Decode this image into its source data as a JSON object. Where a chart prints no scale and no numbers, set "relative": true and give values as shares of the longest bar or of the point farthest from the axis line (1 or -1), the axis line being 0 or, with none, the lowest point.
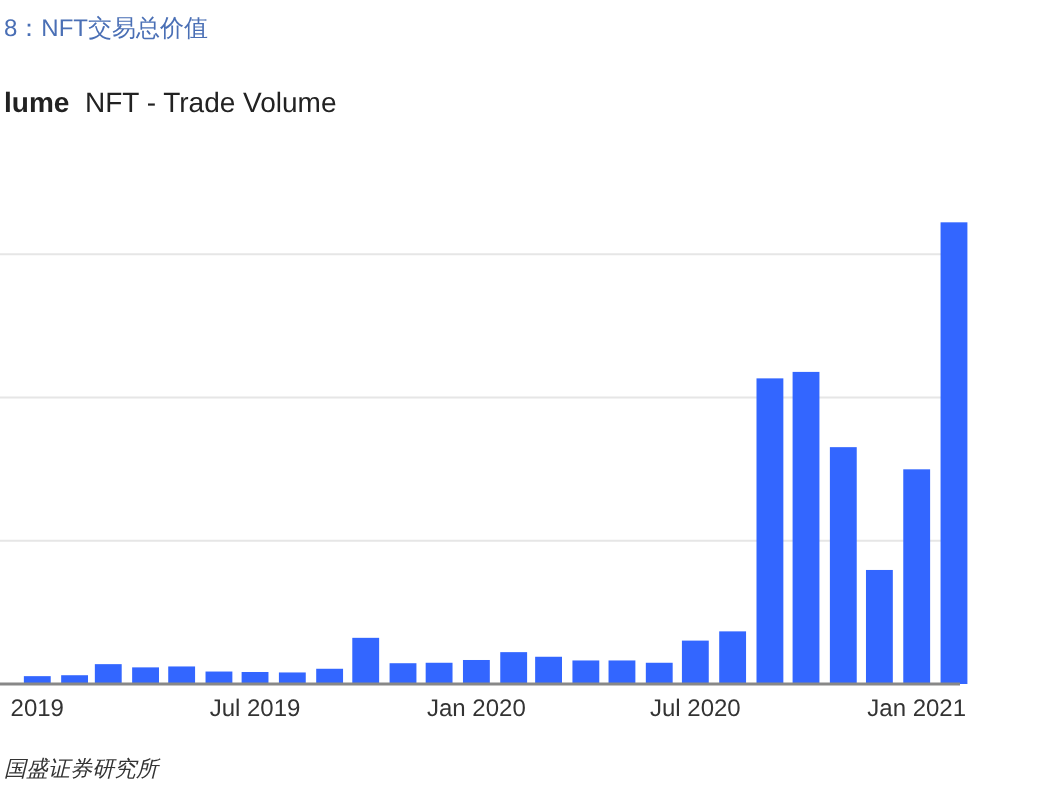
{
  "chart_data": {
    "type": "bar",
    "title": "8：NFT交易总价值",
    "subtitle": "lume  NFT - Trade Volume",
    "annotations": [
      "国盛证券研究所"
    ],
    "relative": true,
    "grid": "y",
    "x": [
      "2019-01",
      "2019-02",
      "2019-03",
      "2019-04",
      "2019-05",
      "2019-06",
      "2019-07",
      "2019-08",
      "2019-09",
      "2019-10",
      "2019-11",
      "2019-12",
      "2020-01",
      "2020-02",
      "2020-03",
      "2020-04",
      "2020-05",
      "2020-06",
      "2020-07",
      "2020-08",
      "2020-09",
      "2020-10",
      "2020-11",
      "2020-12",
      "2021-01",
      "2021-02"
    ],
    "xlim": [
      "2018-12-15",
      "2021-02-20"
    ],
    "xticks": [
      {
        "value": "2019-01",
        "label": "2019"
      },
      {
        "value": "2019-07",
        "label": "Jul 2019"
      },
      {
        "value": "2020-01",
        "label": "Jan 2020"
      },
      {
        "value": "2020-07",
        "label": "Jul 2020"
      },
      {
        "value": "2021-01",
        "label": "Jan 2021"
      }
    ],
    "series": [
      {
        "color": "#3366ff",
        "values": [
          0.017,
          0.019,
          0.043,
          0.036,
          0.038,
          0.027,
          0.026,
          0.025,
          0.033,
          0.1,
          0.045,
          0.046,
          0.052,
          0.069,
          0.059,
          0.051,
          0.051,
          0.046,
          0.094,
          0.114,
          0.662,
          0.676,
          0.513,
          0.247,
          0.465,
          1
        ]
      }
    ]
  }
}
